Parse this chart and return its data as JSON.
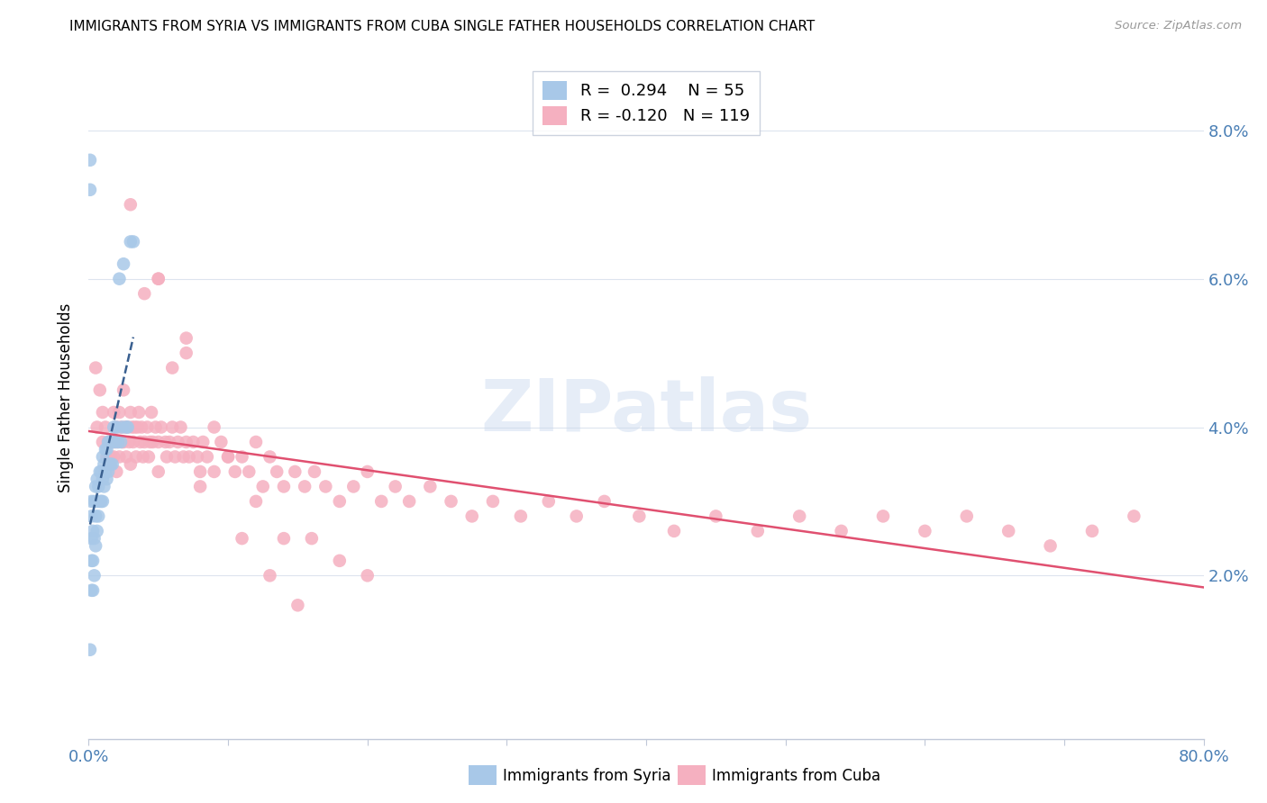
{
  "title": "IMMIGRANTS FROM SYRIA VS IMMIGRANTS FROM CUBA SINGLE FATHER HOUSEHOLDS CORRELATION CHART",
  "source": "Source: ZipAtlas.com",
  "ylabel": "Single Father Households",
  "ytick_values": [
    0.02,
    0.04,
    0.06,
    0.08
  ],
  "xlim": [
    0.0,
    0.8
  ],
  "ylim": [
    -0.002,
    0.09
  ],
  "legend_r_syria": "R =  0.294",
  "legend_n_syria": "N = 55",
  "legend_r_cuba": "R = -0.120",
  "legend_n_cuba": "N = 119",
  "color_syria": "#a8c8e8",
  "color_cuba": "#f5b0c0",
  "trendline_syria_color": "#3a6090",
  "trendline_cuba_color": "#e05070",
  "watermark_text": "ZIPatlas",
  "syria_x": [
    0.001,
    0.001,
    0.001,
    0.002,
    0.002,
    0.002,
    0.002,
    0.002,
    0.003,
    0.003,
    0.003,
    0.004,
    0.004,
    0.004,
    0.005,
    0.005,
    0.005,
    0.006,
    0.006,
    0.006,
    0.007,
    0.007,
    0.008,
    0.008,
    0.009,
    0.009,
    0.01,
    0.01,
    0.01,
    0.011,
    0.011,
    0.012,
    0.012,
    0.013,
    0.013,
    0.014,
    0.014,
    0.015,
    0.015,
    0.016,
    0.016,
    0.017,
    0.017,
    0.018,
    0.019,
    0.02,
    0.021,
    0.022,
    0.023,
    0.024,
    0.025,
    0.027,
    0.028,
    0.03,
    0.032
  ],
  "syria_y": [
    0.076,
    0.072,
    0.01,
    0.03,
    0.028,
    0.025,
    0.022,
    0.018,
    0.026,
    0.022,
    0.018,
    0.03,
    0.025,
    0.02,
    0.032,
    0.028,
    0.024,
    0.033,
    0.03,
    0.026,
    0.032,
    0.028,
    0.034,
    0.03,
    0.034,
    0.03,
    0.036,
    0.033,
    0.03,
    0.035,
    0.032,
    0.037,
    0.034,
    0.037,
    0.033,
    0.038,
    0.034,
    0.038,
    0.035,
    0.038,
    0.035,
    0.038,
    0.035,
    0.04,
    0.038,
    0.04,
    0.038,
    0.06,
    0.038,
    0.04,
    0.062,
    0.04,
    0.04,
    0.065,
    0.065
  ],
  "cuba_x": [
    0.005,
    0.006,
    0.008,
    0.01,
    0.01,
    0.012,
    0.013,
    0.014,
    0.015,
    0.015,
    0.016,
    0.017,
    0.018,
    0.018,
    0.019,
    0.02,
    0.02,
    0.021,
    0.022,
    0.022,
    0.023,
    0.024,
    0.025,
    0.025,
    0.026,
    0.027,
    0.028,
    0.029,
    0.03,
    0.03,
    0.031,
    0.032,
    0.033,
    0.034,
    0.035,
    0.036,
    0.037,
    0.038,
    0.039,
    0.04,
    0.042,
    0.043,
    0.044,
    0.045,
    0.046,
    0.048,
    0.05,
    0.05,
    0.052,
    0.055,
    0.056,
    0.058,
    0.06,
    0.062,
    0.064,
    0.066,
    0.068,
    0.07,
    0.072,
    0.075,
    0.078,
    0.08,
    0.082,
    0.085,
    0.09,
    0.095,
    0.1,
    0.105,
    0.11,
    0.115,
    0.12,
    0.125,
    0.13,
    0.135,
    0.14,
    0.148,
    0.155,
    0.162,
    0.17,
    0.18,
    0.19,
    0.2,
    0.21,
    0.22,
    0.23,
    0.245,
    0.26,
    0.275,
    0.29,
    0.31,
    0.33,
    0.35,
    0.37,
    0.395,
    0.42,
    0.45,
    0.48,
    0.51,
    0.54,
    0.57,
    0.6,
    0.63,
    0.66,
    0.69,
    0.72,
    0.75,
    0.04,
    0.06,
    0.08,
    0.1,
    0.12,
    0.14,
    0.16,
    0.18,
    0.2,
    0.05,
    0.07,
    0.09,
    0.11,
    0.13,
    0.03,
    0.05,
    0.07,
    0.15
  ],
  "cuba_y": [
    0.048,
    0.04,
    0.045,
    0.038,
    0.042,
    0.04,
    0.036,
    0.038,
    0.038,
    0.035,
    0.036,
    0.038,
    0.042,
    0.036,
    0.038,
    0.04,
    0.034,
    0.038,
    0.042,
    0.036,
    0.04,
    0.038,
    0.045,
    0.038,
    0.04,
    0.036,
    0.04,
    0.038,
    0.042,
    0.035,
    0.04,
    0.038,
    0.04,
    0.036,
    0.04,
    0.042,
    0.038,
    0.04,
    0.036,
    0.038,
    0.04,
    0.036,
    0.038,
    0.042,
    0.038,
    0.04,
    0.038,
    0.034,
    0.04,
    0.038,
    0.036,
    0.038,
    0.04,
    0.036,
    0.038,
    0.04,
    0.036,
    0.038,
    0.036,
    0.038,
    0.036,
    0.034,
    0.038,
    0.036,
    0.034,
    0.038,
    0.036,
    0.034,
    0.036,
    0.034,
    0.038,
    0.032,
    0.036,
    0.034,
    0.032,
    0.034,
    0.032,
    0.034,
    0.032,
    0.03,
    0.032,
    0.034,
    0.03,
    0.032,
    0.03,
    0.032,
    0.03,
    0.028,
    0.03,
    0.028,
    0.03,
    0.028,
    0.03,
    0.028,
    0.026,
    0.028,
    0.026,
    0.028,
    0.026,
    0.028,
    0.026,
    0.028,
    0.026,
    0.024,
    0.026,
    0.028,
    0.058,
    0.048,
    0.032,
    0.036,
    0.03,
    0.025,
    0.025,
    0.022,
    0.02,
    0.06,
    0.052,
    0.04,
    0.025,
    0.02,
    0.07,
    0.06,
    0.05,
    0.016
  ]
}
